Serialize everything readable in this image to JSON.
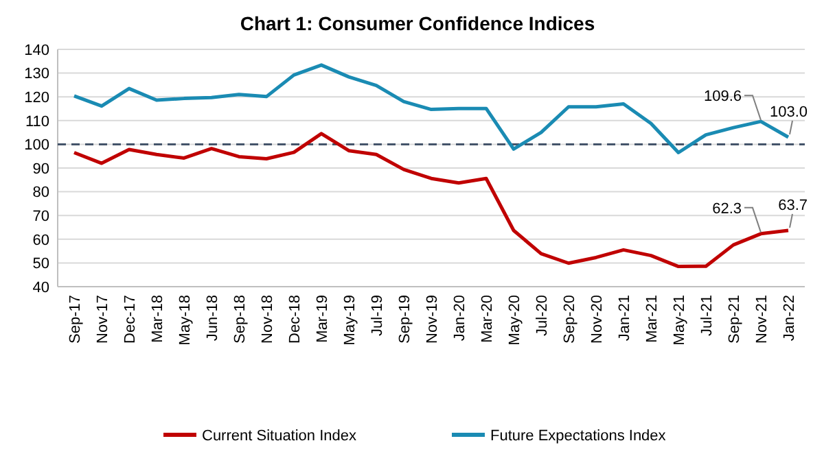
{
  "chart_data": {
    "type": "line",
    "title": "Chart 1: Consumer Confidence Indices",
    "categories": [
      "Sep-17",
      "Nov-17",
      "Dec-17",
      "Mar-18",
      "May-18",
      "Jun-18",
      "Sep-18",
      "Nov-18",
      "Dec-18",
      "Mar-19",
      "May-19",
      "Jul-19",
      "Sep-19",
      "Nov-19",
      "Jan-20",
      "Mar-20",
      "May-20",
      "Jul-20",
      "Sep-20",
      "Nov-20",
      "Jan-21",
      "Mar-21",
      "May-21",
      "Jul-21",
      "Sep-21",
      "Nov-21",
      "Jan-22"
    ],
    "series": [
      {
        "name": "Current Situation Index",
        "color": "#c00000",
        "values": [
          96.5,
          92.0,
          97.8,
          95.7,
          94.2,
          98.2,
          94.8,
          93.9,
          96.6,
          104.5,
          97.3,
          95.7,
          89.4,
          85.6,
          83.7,
          85.6,
          63.7,
          53.9,
          49.9,
          52.3,
          55.5,
          53.1,
          48.5,
          48.6,
          57.6,
          62.3,
          63.7
        ],
        "value_labels": [
          null,
          null,
          null,
          null,
          null,
          null,
          null,
          null,
          null,
          null,
          null,
          null,
          null,
          null,
          null,
          null,
          null,
          null,
          null,
          null,
          null,
          null,
          null,
          null,
          null,
          "62.3",
          "63.7"
        ]
      },
      {
        "name": "Future Expectations Index",
        "color": "#1a8bb3",
        "values": [
          120.4,
          116.1,
          123.5,
          118.6,
          119.3,
          119.7,
          121.0,
          120.1,
          129.2,
          133.4,
          128.4,
          124.8,
          118.0,
          114.7,
          115.1,
          115.1,
          98.0,
          105.0,
          115.8,
          115.8,
          117.0,
          108.8,
          96.5,
          104.0,
          107.0,
          109.6,
          103.0
        ],
        "value_labels": [
          null,
          null,
          null,
          null,
          null,
          null,
          null,
          null,
          null,
          null,
          null,
          null,
          null,
          null,
          null,
          null,
          null,
          null,
          null,
          null,
          null,
          null,
          null,
          null,
          null,
          "109.6",
          "103.0"
        ]
      }
    ],
    "ylim": [
      40,
      140
    ],
    "yticks": [
      40,
      50,
      60,
      70,
      80,
      90,
      100,
      110,
      120,
      130,
      140
    ],
    "grid": "y",
    "legend": "bottom",
    "marker": "none",
    "line_style": "solid",
    "ref_lines": [
      {
        "axis": "y",
        "value": 100,
        "color": "#44546a",
        "line_style": "dashed"
      }
    ]
  }
}
